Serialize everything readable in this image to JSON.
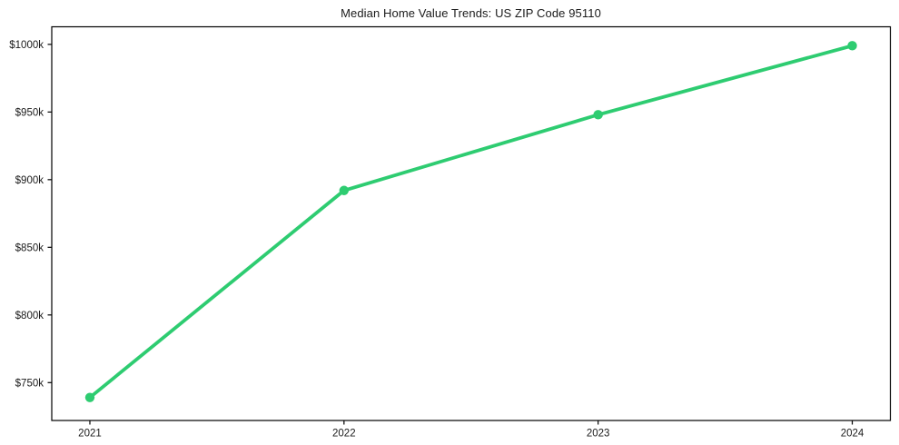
{
  "figure": {
    "background": "#ffffff"
  },
  "chart_data": {
    "type": "line",
    "title": "Median Home Value Trends: US ZIP Code 95110",
    "x": [
      2021,
      2022,
      2023,
      2024
    ],
    "values": [
      739,
      892,
      948,
      999
    ],
    "x_tick_labels": [
      "2021",
      "2022",
      "2023",
      "2024"
    ],
    "y_ticks": [
      750,
      800,
      850,
      900,
      950,
      1000
    ],
    "y_tick_labels": [
      "$750k",
      "$800k",
      "$850k",
      "$900k",
      "$950k",
      "$1000k"
    ],
    "xlabel": "",
    "ylabel": "",
    "xlim": [
      2020.85,
      2024.15
    ],
    "ylim": [
      722,
      1013
    ],
    "grid": false,
    "legend": false,
    "line_color": "#2ecc71",
    "spine_color": "#000000",
    "text_color": "#1a1a1a"
  }
}
